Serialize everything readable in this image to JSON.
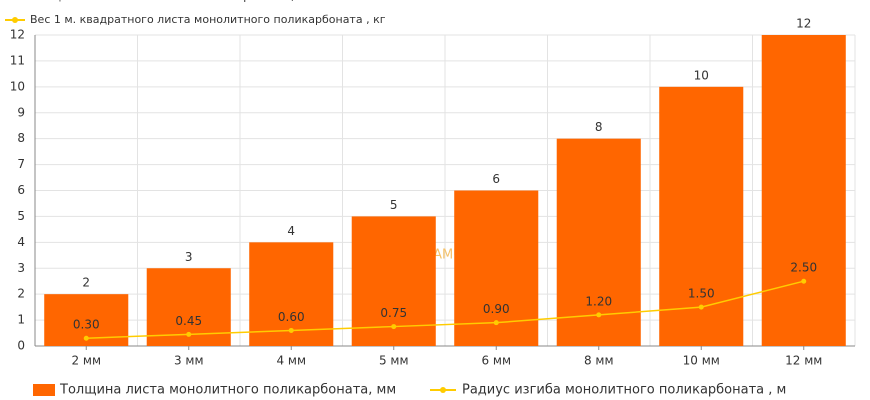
{
  "chart_data": {
    "type": "bar-line",
    "top_legend": [
      "Толщина листа монолитного поликарбоната, мм",
      "Вес 1 м. квадратного листа монолитного поликарбоната , кг"
    ],
    "top_legend_colors": [
      "#4da6e0",
      "#ffcc00"
    ],
    "watermark": "SAMU.RU",
    "categories": [
      "2 мм",
      "3 мм",
      "4 мм",
      "5 мм",
      "6 мм",
      "8 мм",
      "10 мм",
      "12 мм"
    ],
    "series": [
      {
        "name": "Толщина листа монолитного поликарбоната, мм",
        "color": "#ff6600",
        "kind": "bar",
        "values": [
          2,
          3,
          4,
          5,
          6,
          8,
          10,
          12
        ]
      },
      {
        "name": "Радиус изгиба монолитного поликарбоната , м",
        "color": "#ffcc00",
        "kind": "line",
        "values": [
          0.3,
          0.45,
          0.6,
          0.75,
          0.9,
          1.2,
          1.5,
          2.5
        ],
        "value_labels": [
          "0.30",
          "0.45",
          "0.60",
          "0.75",
          "0.90",
          "1.20",
          "1.50",
          "2.50"
        ]
      }
    ],
    "ylim": [
      0,
      12
    ],
    "yticks": [
      0,
      1,
      2,
      3,
      4,
      5,
      6,
      7,
      8,
      9,
      10,
      11,
      12
    ],
    "grid": true
  }
}
